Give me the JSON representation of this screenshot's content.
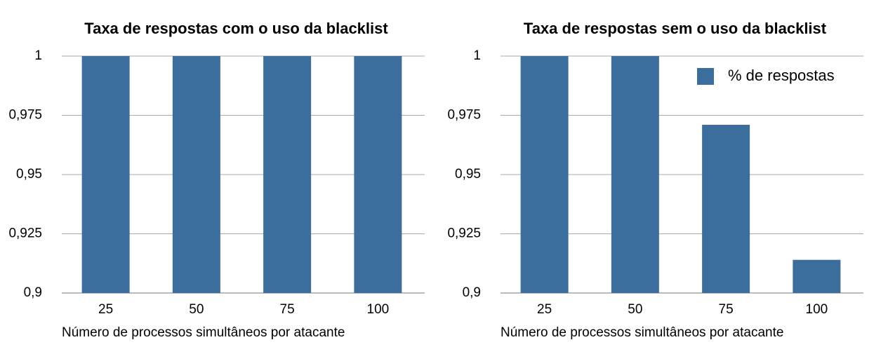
{
  "chart_data": [
    {
      "type": "bar",
      "title": "Taxa de respostas com o uso da blacklist",
      "x_label": "Número de processos simultâneos por atacante",
      "categories": [
        "25",
        "50",
        "75",
        "100"
      ],
      "values": [
        1,
        1,
        1,
        1
      ],
      "color": "#3b6e9c",
      "ylim": [
        0.9,
        1
      ],
      "yticks": [
        {
          "value": 0.9,
          "label": "0,9"
        },
        {
          "value": 0.925,
          "label": "0,925"
        },
        {
          "value": 0.95,
          "label": "0,95"
        },
        {
          "value": 0.975,
          "label": "0,975"
        },
        1
      ],
      "grid": true
    },
    {
      "type": "bar",
      "title": "Taxa de respostas sem o uso da blacklist",
      "x_label": "Número de processos simultâneos por atacante",
      "categories": [
        "25",
        "50",
        "75",
        "100"
      ],
      "series": [
        {
          "name": "% de respostas",
          "color": "#3b6e9c",
          "values": [
            1,
            1,
            0.971,
            0.914
          ]
        }
      ],
      "ylim": [
        0.9,
        1
      ],
      "yticks": [
        {
          "value": 0.9,
          "label": "0,9"
        },
        {
          "value": 0.925,
          "label": "0,925"
        },
        {
          "value": 0.95,
          "label": "0,95"
        },
        {
          "value": 0.975,
          "label": "0,975"
        },
        1
      ],
      "grid": true,
      "legend": "upper right"
    }
  ]
}
